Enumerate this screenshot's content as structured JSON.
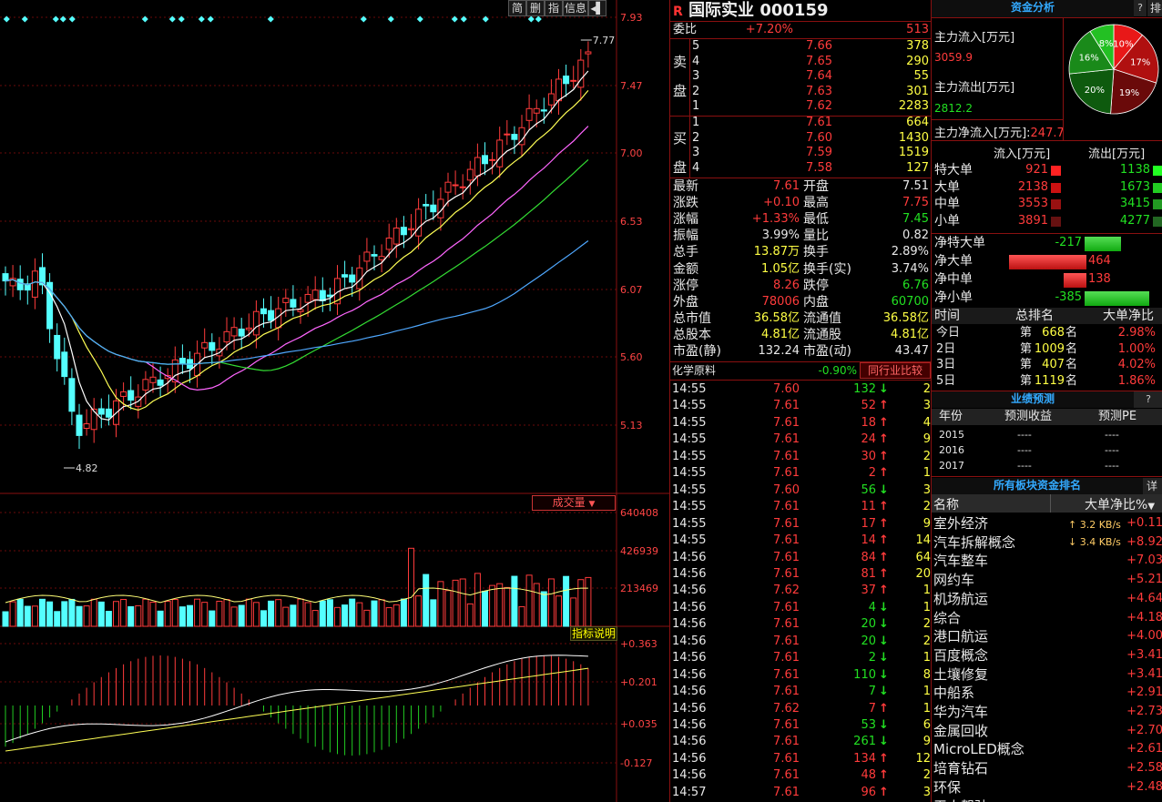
{
  "toolbar": {
    "btn1": "简",
    "btn2": "删",
    "btn3": "指",
    "btn4": "信息",
    "btn5": "◂▌"
  },
  "price_axis": [
    "7.93",
    "7.47",
    "7.00",
    "6.53",
    "6.07",
    "5.60",
    "5.13"
  ],
  "high_mark": "7.77",
  "low_mark": "4.82",
  "vol_axis": [
    "640408",
    "426939",
    "213469"
  ],
  "vol_label": "成交量",
  "macd_axis": [
    "+0.363",
    "+0.201",
    "+0.035",
    "-0.127"
  ],
  "macd_label": "指标说明",
  "stock": {
    "badge": "R",
    "name": "国际实业",
    "code": "000159"
  },
  "weibi": {
    "label": "委比",
    "pct": "+7.20%",
    "val": "513"
  },
  "sell": [
    [
      "5",
      "7.66",
      "378"
    ],
    [
      "4",
      "7.65",
      "290"
    ],
    [
      "3",
      "7.64",
      "55"
    ],
    [
      "2",
      "7.63",
      "301"
    ],
    [
      "1",
      "7.62",
      "2283"
    ]
  ],
  "sell_label": [
    "卖",
    "盘"
  ],
  "buy": [
    [
      "1",
      "7.61",
      "664"
    ],
    [
      "2",
      "7.60",
      "1430"
    ],
    [
      "3",
      "7.59",
      "1519"
    ],
    [
      "4",
      "7.58",
      "127"
    ]
  ],
  "buy_label": [
    "买",
    "盘"
  ],
  "quote": [
    [
      "最新",
      "7.61",
      "开盘",
      "7.51"
    ],
    [
      "涨跌",
      "+0.10",
      "最高",
      "7.75"
    ],
    [
      "涨幅",
      "+1.33%",
      "最低",
      "7.45"
    ],
    [
      "振幅",
      "3.99%",
      "量比",
      "0.82"
    ],
    [
      "总手",
      "13.87万",
      "换手",
      "2.89%"
    ],
    [
      "金额",
      "1.05亿",
      "换手(实)",
      "3.74%"
    ],
    [
      "涨停",
      "8.26",
      "跌停",
      "6.76"
    ],
    [
      "外盘",
      "78006",
      "内盘",
      "60700"
    ],
    [
      "总市值",
      "36.58亿",
      "流通值",
      "36.58亿"
    ],
    [
      "总股本",
      "4.81亿",
      "流通股",
      "4.81亿"
    ],
    [
      "市盈(静)",
      "132.24",
      "市盈(动)",
      "43.47"
    ]
  ],
  "industry": {
    "name": "化学原料",
    "pct": "-0.90%",
    "button": "同行业比较"
  },
  "ticks": [
    [
      "14:55",
      "7.60",
      "132",
      "↓",
      "2"
    ],
    [
      "14:55",
      "7.61",
      "52",
      "↑",
      "3"
    ],
    [
      "14:55",
      "7.61",
      "18",
      "↑",
      "4"
    ],
    [
      "14:55",
      "7.61",
      "24",
      "↑",
      "9"
    ],
    [
      "14:55",
      "7.61",
      "30",
      "↑",
      "2"
    ],
    [
      "14:55",
      "7.61",
      "2",
      "↑",
      "1"
    ],
    [
      "14:55",
      "7.60",
      "56",
      "↓",
      "3"
    ],
    [
      "14:55",
      "7.61",
      "11",
      "↑",
      "2"
    ],
    [
      "14:55",
      "7.61",
      "17",
      "↑",
      "9"
    ],
    [
      "14:55",
      "7.61",
      "14",
      "↑",
      "14"
    ],
    [
      "14:56",
      "7.61",
      "84",
      "↑",
      "64"
    ],
    [
      "14:56",
      "7.61",
      "81",
      "↑",
      "20"
    ],
    [
      "14:56",
      "7.62",
      "37",
      "↑",
      "1"
    ],
    [
      "14:56",
      "7.61",
      "4",
      "↓",
      "1"
    ],
    [
      "14:56",
      "7.61",
      "20",
      "↓",
      "2"
    ],
    [
      "14:56",
      "7.61",
      "20",
      "↓",
      "2"
    ],
    [
      "14:56",
      "7.61",
      "2",
      "↓",
      "1"
    ],
    [
      "14:56",
      "7.61",
      "110",
      "↓",
      "8"
    ],
    [
      "14:56",
      "7.61",
      "7",
      "↓",
      "1"
    ],
    [
      "14:56",
      "7.62",
      "7",
      "↑",
      "1"
    ],
    [
      "14:56",
      "7.61",
      "53",
      "↓",
      "6"
    ],
    [
      "14:56",
      "7.61",
      "261",
      "↓",
      "9"
    ],
    [
      "14:56",
      "7.61",
      "134",
      "↑",
      "12"
    ],
    [
      "14:56",
      "7.61",
      "48",
      "↑",
      "2"
    ],
    [
      "14:57",
      "7.61",
      "96",
      "↑",
      "3"
    ]
  ],
  "capital": {
    "title": "资金分析",
    "q": "?",
    "rank": "排名",
    "in_label": "主力流入[万元]",
    "in_val": "3059.9",
    "out_label": "主力流出[万元]",
    "out_val": "2812.2",
    "net_label": "主力净流入[万元]:",
    "net_val": "247.7",
    "pie": [
      "10%",
      "17%",
      "19%",
      "20%",
      "16%",
      "8%"
    ]
  },
  "flow": {
    "h1": "流入[万元]",
    "h2": "流出[万元]",
    "rows": [
      [
        "特大单",
        "921",
        "1138"
      ],
      [
        "大单",
        "2138",
        "1673"
      ],
      [
        "中单",
        "3553",
        "3415"
      ],
      [
        "小单",
        "3891",
        "4277"
      ]
    ]
  },
  "net": [
    [
      "净特大单",
      "-217"
    ],
    [
      "净大单",
      "464"
    ],
    [
      "净中单",
      "138"
    ],
    [
      "净小单",
      "-385"
    ]
  ],
  "rank": {
    "h": [
      "时间",
      "总排名",
      "大单净比"
    ],
    "rows": [
      [
        "今日",
        "第",
        "668",
        "名",
        "2.98%"
      ],
      [
        "2日",
        "第",
        "1009",
        "名",
        "1.00%"
      ],
      [
        "3日",
        "第",
        "407",
        "名",
        "4.02%"
      ],
      [
        "5日",
        "第",
        "1119",
        "名",
        "1.86%"
      ]
    ]
  },
  "forecast": {
    "title": "业绩预测",
    "q": "?",
    "h": [
      "年份",
      "预测收益",
      "预测PE"
    ],
    "rows": [
      [
        "2015",
        "----",
        "----"
      ],
      [
        "2016",
        "----",
        "----"
      ],
      [
        "2017",
        "----",
        "----"
      ]
    ]
  },
  "sector": {
    "title": "所有板块资金排名",
    "detail": "详",
    "h1": "名称",
    "h2": "大单净比%",
    "rows": [
      [
        "室外经济",
        "+0.11"
      ],
      [
        "汽车拆解概念",
        "+8.92"
      ],
      [
        "汽车整车",
        "+7.03"
      ],
      [
        "网约车",
        "+5.21"
      ],
      [
        "机场航运",
        "+4.64"
      ],
      [
        "综合",
        "+4.18"
      ],
      [
        "港口航运",
        "+4.00"
      ],
      [
        "百度概念",
        "+3.41"
      ],
      [
        "土壤修复",
        "+3.41"
      ],
      [
        "中船系",
        "+2.91"
      ],
      [
        "华为汽车",
        "+2.73"
      ],
      [
        "金属回收",
        "+2.70"
      ],
      [
        "MicroLED概念",
        "+2.61"
      ],
      [
        "培育钻石",
        "+2.58"
      ],
      [
        "环保",
        "+2.48"
      ],
      [
        "无人驾驶",
        ""
      ]
    ],
    "net_up": "↑ 3.2 KB/s",
    "net_down": "↓ 3.4 KB/s"
  }
}
